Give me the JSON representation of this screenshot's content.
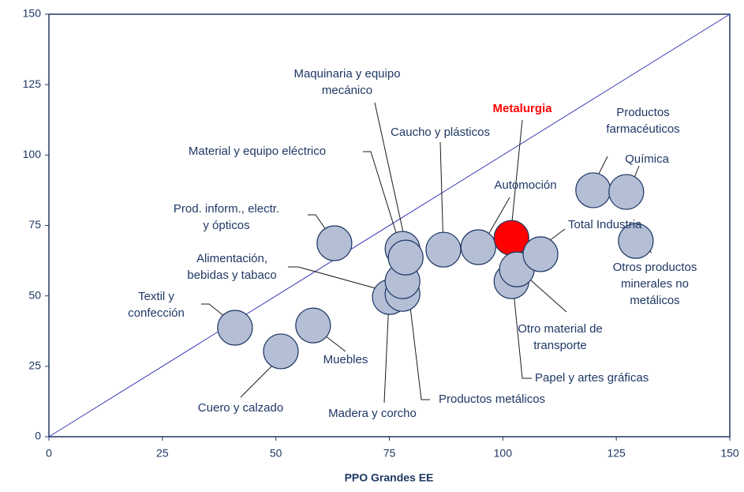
{
  "chart_data": {
    "type": "scatter",
    "x_label": "PPO Grandes EE",
    "xlim": [
      0,
      150
    ],
    "ylim": [
      0,
      150
    ],
    "xticks": [
      0,
      25,
      50,
      75,
      100,
      125,
      150
    ],
    "yticks": [
      0,
      25,
      50,
      75,
      100,
      125,
      150
    ],
    "color": "#b4bfd6",
    "edge_color": "#1f3864",
    "highlight_color": "#ff0000",
    "diagonal": true,
    "labels": [
      "Textil y\nconfección",
      "Cuero y calzado",
      "Muebles",
      "Prod. inform., electr.\ny ópticos",
      "Madera y corcho",
      "Alimentación,\nbebidas y tabaco",
      "Productos metálicos",
      "Material y equipo eléctrico",
      "Maquinaria y equipo\nmecánico",
      "Caucho y plásticos",
      "Automoción",
      "Metalurgia",
      "Papel y artes gráficas",
      "Otro material de\ntransporte",
      "Total Industria",
      "Productos\nfarmacéuticos",
      "Química",
      "Otros productos\nminerales no\nmetálicos"
    ],
    "x": [
      41.0,
      51.1,
      58.2,
      62.9,
      75.1,
      77.9,
      77.9,
      77.9,
      78.6,
      86.9,
      94.6,
      101.9,
      101.9,
      103.1,
      108.3,
      119.9,
      127.2,
      129.3
    ],
    "y": [
      38.7,
      30.3,
      39.5,
      68.7,
      49.6,
      50.7,
      55.2,
      66.7,
      63.6,
      66.4,
      67.3,
      70.6,
      55.2,
      59.4,
      64.8,
      87.5,
      86.9,
      69.5
    ],
    "highlight": "Metalurgia"
  }
}
